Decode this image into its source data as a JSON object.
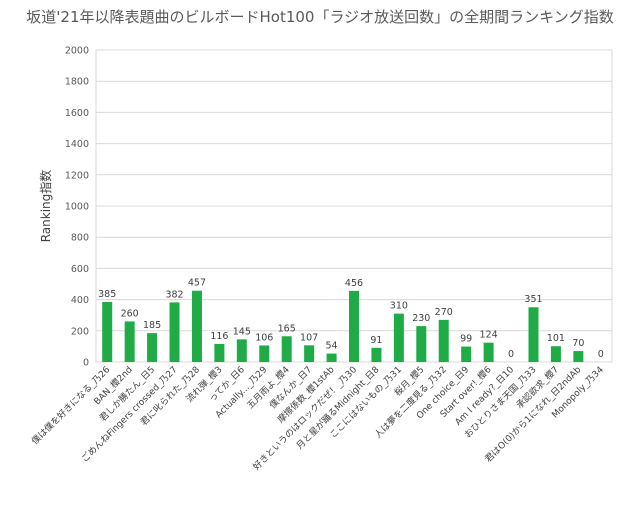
{
  "chart_data": {
    "type": "bar",
    "title": "坂道'21年以降表題曲のビルボードHot100「ラジオ放送回数」の全期間ランキング指数",
    "xlabel": "",
    "ylabel": "Ranking指数",
    "ylim": [
      0,
      2000
    ],
    "yticks": [
      0,
      200,
      400,
      600,
      800,
      1000,
      1200,
      1400,
      1600,
      1800,
      2000
    ],
    "grid": true,
    "legend": "none",
    "bar_color": "#1fab45",
    "categories": [
      "僕は僕を好きになる_乃26",
      "BAN_櫻2nd",
      "君しか勝たん_日5",
      "ごめんねFingers crossed_乃27",
      "君に叱られた_乃28",
      "流れ弾_櫻3",
      "ってか_日6",
      "Actually..._乃29",
      "五月雨よ_櫻4",
      "僕なんか_日7",
      "摩擦係数_櫻1stAb",
      "好きというのはロックだぜ！_乃30",
      "月と星が踊るMidnight_日8",
      "ここにはないもの_乃31",
      "桜月_櫻5",
      "人は夢を二度見る_乃32",
      "One choice_日9",
      "Start over!_櫻6",
      "Am I ready?_日10",
      "おひとりさま天国_乃33",
      "承認欲求_櫻7",
      "君はO(0)から1になれ_日2ndAb",
      "Monopoly_乃34"
    ],
    "values": [
      385,
      260,
      185,
      382,
      457,
      116,
      145,
      106,
      165,
      107,
      54,
      456,
      91,
      310,
      230,
      270,
      99,
      124,
      0,
      351,
      101,
      70,
      0
    ]
  }
}
